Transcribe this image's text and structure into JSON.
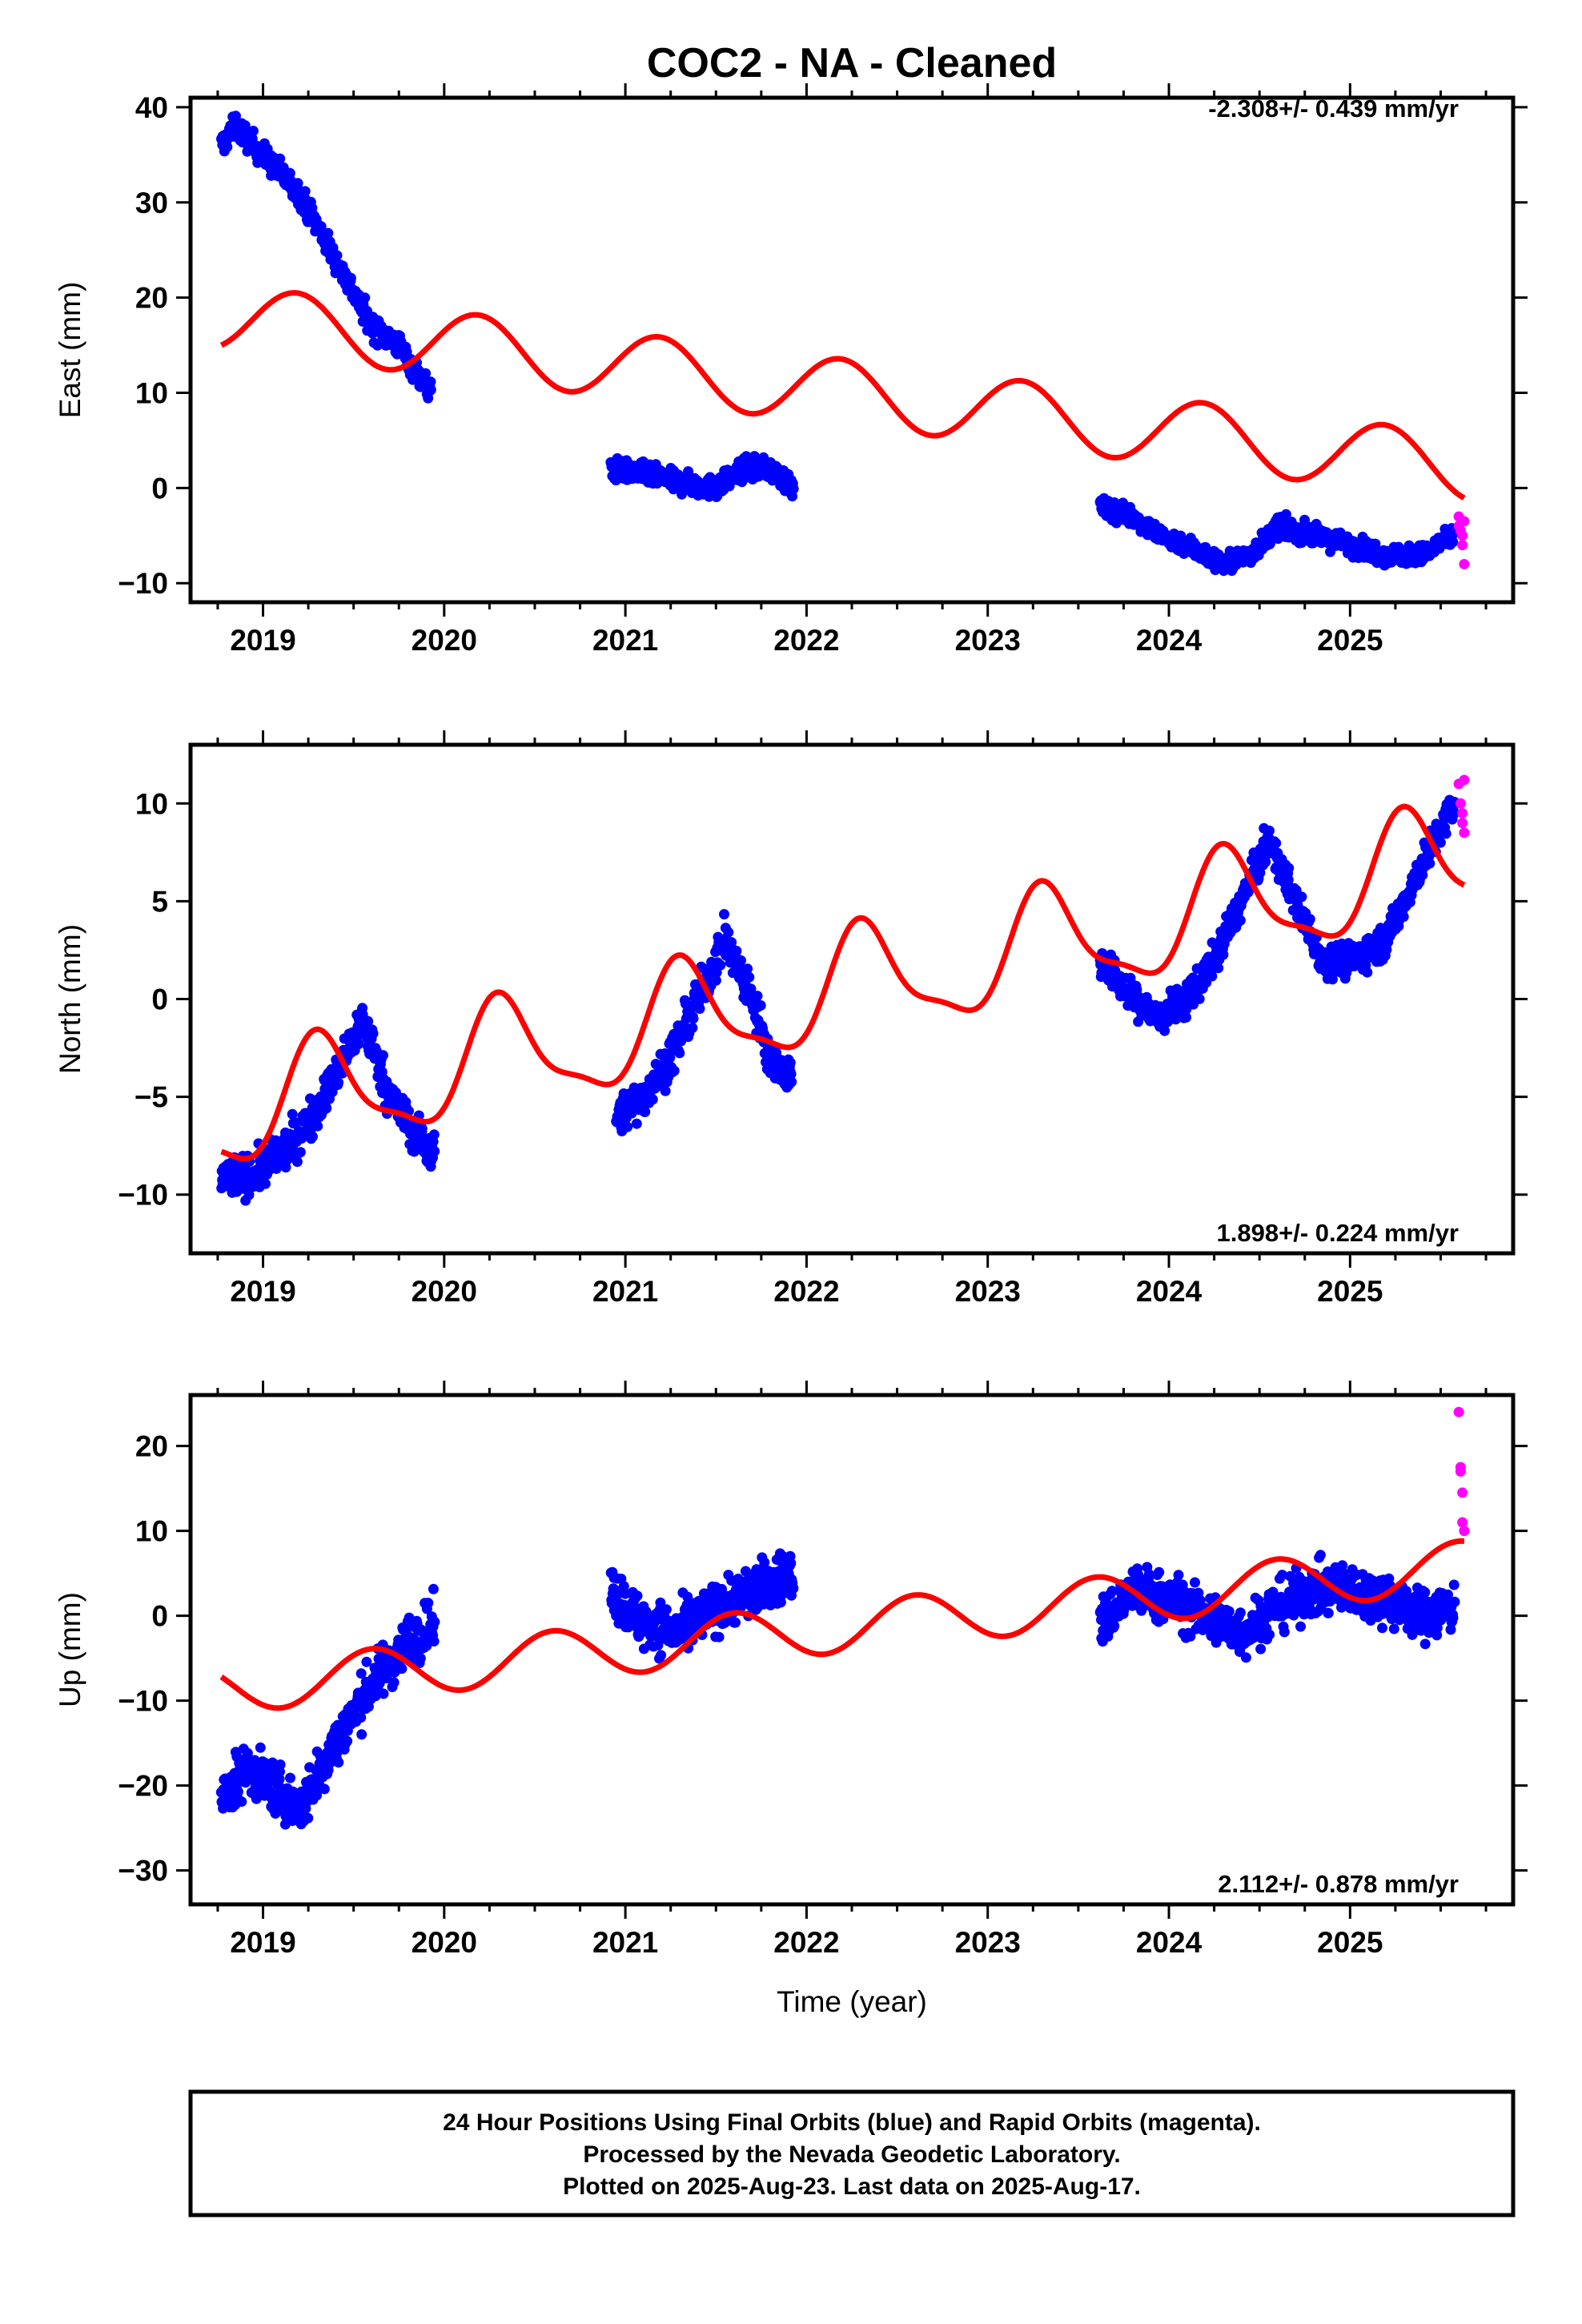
{
  "colors": {
    "final_points": "#0000ff",
    "rapid_points": "#ff00ff",
    "model_line": "#ff0000",
    "frame": "#000000"
  },
  "chart_data": [
    {
      "type": "scatter",
      "title": "COC2  - NA - Cleaned",
      "ylabel": "East (mm)",
      "xlabel": "",
      "rate_label": "-2.308+/- 0.439 mm/yr",
      "xlim": [
        2018.6,
        2025.9
      ],
      "ylim": [
        -12,
        41
      ],
      "xticks": [
        2019,
        2020,
        2021,
        2022,
        2023,
        2024,
        2025
      ],
      "yticks": [
        -10,
        0,
        10,
        20,
        30,
        40
      ],
      "grid": false,
      "series": [],
      "final_segments": [
        {
          "x": [
            2018.77,
            2018.85,
            2019.0,
            2019.2,
            2019.4,
            2019.6,
            2019.75,
            2019.85,
            2019.93
          ],
          "y": [
            36,
            38,
            35,
            31,
            24,
            17,
            15,
            12,
            10
          ],
          "spread": 1.5
        },
        {
          "x": [
            2020.92,
            2021.1,
            2021.3,
            2021.5,
            2021.65,
            2021.8,
            2021.93
          ],
          "y": [
            2,
            1.5,
            0.5,
            0,
            2,
            2,
            0
          ],
          "spread": 1.3
        },
        {
          "x": [
            2023.62,
            2023.8,
            2023.95,
            2024.1,
            2024.3,
            2024.45,
            2024.6,
            2024.8,
            2025.0,
            2025.2,
            2025.4,
            2025.57
          ],
          "y": [
            -2,
            -3,
            -5,
            -6,
            -8,
            -7,
            -4,
            -5,
            -6,
            -7,
            -7,
            -5
          ],
          "spread": 1.2
        }
      ],
      "rapid_points": {
        "x": [
          2025.6,
          2025.6,
          2025.61,
          2025.62,
          2025.62,
          2025.63,
          2025.63
        ],
        "y": [
          -3,
          -4,
          -4.5,
          -5,
          -6,
          -8,
          -3.5
        ]
      },
      "model": {
        "trend": -2.308,
        "offset": 15.0,
        "x0": 2018.77,
        "seasonal_sin": 1.7,
        "seasonal_cos": -3.0,
        "semi_sin": 0.0,
        "semi_cos": 0.0
      }
    },
    {
      "type": "scatter",
      "title": "",
      "ylabel": "North (mm)",
      "xlabel": "",
      "rate_label": "1.898+/- 0.224 mm/yr",
      "xlim": [
        2018.6,
        2025.9
      ],
      "ylim": [
        -13,
        13
      ],
      "xticks": [
        2019,
        2020,
        2021,
        2022,
        2023,
        2024,
        2025
      ],
      "yticks": [
        -10,
        -5,
        0,
        5,
        10
      ],
      "grid": false,
      "series": [],
      "final_segments": [
        {
          "x": [
            2018.77,
            2018.95,
            2019.2,
            2019.4,
            2019.55,
            2019.7,
            2019.85,
            2019.95
          ],
          "y": [
            -9,
            -9,
            -7,
            -4,
            -1,
            -5,
            -7,
            -8
          ],
          "spread": 1.2
        },
        {
          "x": [
            2020.95,
            2021.1,
            2021.25,
            2021.4,
            2021.55,
            2021.7,
            2021.8,
            2021.92
          ],
          "y": [
            -6,
            -5,
            -3,
            0,
            3,
            0,
            -3,
            -4
          ],
          "spread": 1.2
        },
        {
          "x": [
            2023.62,
            2023.8,
            2023.95,
            2024.1,
            2024.25,
            2024.4,
            2024.55,
            2024.7,
            2024.85,
            2025.0,
            2025.2,
            2025.4,
            2025.58
          ],
          "y": [
            2,
            0,
            -1,
            0,
            2,
            5,
            8,
            5,
            2,
            2,
            3,
            7,
            10
          ],
          "spread": 1.0
        }
      ],
      "rapid_points": {
        "x": [
          2025.6,
          2025.61,
          2025.62,
          2025.62,
          2025.63,
          2025.63
        ],
        "y": [
          11,
          10,
          9.5,
          9,
          8.5,
          11.2
        ]
      },
      "model": {
        "trend": 1.898,
        "offset": -7.8,
        "x0": 2018.77,
        "seasonal_sin": -0.8,
        "seasonal_cos": -2.6,
        "semi_sin": 0.0,
        "semi_cos": 0.8
      }
    },
    {
      "type": "scatter",
      "title": "",
      "ylabel": "Up (mm)",
      "xlabel": "Time (year)",
      "rate_label": "2.112+/- 0.878 mm/yr",
      "xlim": [
        2018.6,
        2025.9
      ],
      "ylim": [
        -34,
        26
      ],
      "xticks": [
        2019,
        2020,
        2021,
        2022,
        2023,
        2024,
        2025
      ],
      "yticks": [
        -30,
        -20,
        -10,
        0,
        10,
        20
      ],
      "grid": false,
      "series": [],
      "final_segments": [
        {
          "x": [
            2018.77,
            2018.9,
            2019.05,
            2019.2,
            2019.4,
            2019.6,
            2019.8,
            2019.95
          ],
          "y": [
            -22,
            -18,
            -20,
            -23,
            -15,
            -8,
            -3,
            -1
          ],
          "spread": 3.5
        },
        {
          "x": [
            2020.92,
            2021.1,
            2021.3,
            2021.5,
            2021.7,
            2021.93
          ],
          "y": [
            3,
            -1,
            -2,
            1,
            3,
            5
          ],
          "spread": 3.5
        },
        {
          "x": [
            2023.62,
            2023.8,
            2024.0,
            2024.2,
            2024.4,
            2024.6,
            2024.8,
            2025.0,
            2025.2,
            2025.4,
            2025.58
          ],
          "y": [
            -1,
            3,
            2,
            0,
            -2,
            1,
            3,
            3,
            2,
            0,
            1
          ],
          "spread": 3.5
        }
      ],
      "rapid_points": {
        "x": [
          2025.6,
          2025.61,
          2025.61,
          2025.62,
          2025.62,
          2025.63
        ],
        "y": [
          24,
          17.5,
          17,
          14.5,
          11,
          10
        ]
      },
      "model": {
        "trend": 2.112,
        "offset": -7.2,
        "x0": 2018.77,
        "seasonal_sin": -2.6,
        "seasonal_cos": 1.4,
        "semi_sin": 0.0,
        "semi_cos": 0.0
      }
    }
  ],
  "footer": {
    "line1": "24 Hour Positions Using Final Orbits (blue) and Rapid Orbits (magenta).",
    "line2": "Processed by the Nevada Geodetic Laboratory.",
    "line3": "Plotted on 2025-Aug-23. Last data on 2025-Aug-17."
  }
}
